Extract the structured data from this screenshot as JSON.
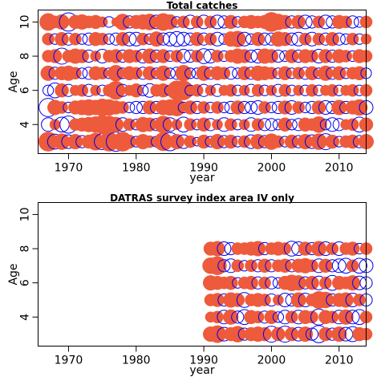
{
  "colors": {
    "positive": "#EE5A3C",
    "negative": "#0000EE"
  },
  "chart_data": [
    {
      "type": "scatter",
      "subtype": "bubble",
      "title": "Total catches",
      "xlabel": "year",
      "ylabel": "Age",
      "xlim": [
        1965.5,
        2014
      ],
      "ylim": [
        2.3,
        10.7
      ],
      "xticks": [
        1970,
        1980,
        1990,
        2000,
        2010
      ],
      "yticks": [
        4,
        6,
        8,
        10
      ],
      "grid": false,
      "ages": [
        3,
        4,
        5,
        6,
        7,
        8,
        9,
        10
      ],
      "years": [
        1967,
        1968,
        1969,
        1970,
        1971,
        1972,
        1973,
        1974,
        1975,
        1976,
        1977,
        1978,
        1979,
        1980,
        1981,
        1982,
        1983,
        1984,
        1985,
        1986,
        1987,
        1988,
        1989,
        1990,
        1991,
        1992,
        1993,
        1994,
        1995,
        1996,
        1997,
        1998,
        1999,
        2000,
        2001,
        2002,
        2003,
        2004,
        2005,
        2006,
        2007,
        2008,
        2009,
        2010,
        2011,
        2012,
        2013,
        2014
      ],
      "residuals": {
        "3": [
          1.0,
          -0.6,
          0.7,
          -0.5,
          0.6,
          -0.4,
          0.5,
          0.8,
          -0.7,
          1.0,
          -1.0,
          1.0,
          0.5,
          -0.3,
          0.6,
          0.4,
          -0.3,
          0.9,
          -0.9,
          0.6,
          -0.5,
          0.4,
          -0.2,
          0.5,
          -0.3,
          0.6,
          -0.4,
          0.5,
          -0.3,
          0.4,
          -0.5,
          0.6,
          -0.4,
          0.7,
          0.4,
          -0.3,
          0.5,
          -0.4,
          0.6,
          -0.5,
          0.7,
          -0.7,
          0.5,
          -0.3,
          0.4,
          0.5,
          -0.4,
          0.6
        ],
        "4": [
          -0.5,
          0.3,
          -0.6,
          -0.8,
          0.4,
          0.5,
          0.6,
          0.7,
          0.9,
          0.8,
          0.6,
          -0.5,
          0.4,
          -0.3,
          0.6,
          0.5,
          -0.4,
          0.8,
          -0.5,
          0.3,
          -0.6,
          0.4,
          -0.3,
          0.5,
          -0.4,
          0.3,
          -0.5,
          0.4,
          -0.3,
          0.3,
          -0.5,
          0.4,
          -0.4,
          -0.4,
          -0.3,
          0.5,
          -0.3,
          -0.4,
          0.5,
          0.4,
          0.7,
          -0.3,
          -0.5,
          -0.4,
          0.3,
          0.4,
          -0.6,
          0.5
        ],
        "5": [
          -0.9,
          0.6,
          0.4,
          -0.3,
          0.5,
          0.6,
          0.7,
          0.6,
          0.8,
          0.7,
          0.5,
          0.4,
          -0.3,
          -0.4,
          -0.4,
          0.5,
          -0.4,
          0.6,
          0.7,
          0.8,
          -0.3,
          0.5,
          -0.4,
          0.4,
          -0.3,
          0.4,
          -0.3,
          -0.4,
          0.5,
          -0.4,
          -0.4,
          -0.5,
          0.4,
          -0.3,
          -0.4,
          0.5,
          -0.5,
          0.4,
          -0.3,
          -0.4,
          0.5,
          -0.5,
          -0.4,
          0.6,
          -0.4,
          0.5,
          0.7,
          -0.5
        ],
        "6": [
          -0.3,
          -0.6,
          0.5,
          -0.4,
          0.3,
          0.4,
          -0.4,
          0.3,
          -0.3,
          0.4,
          0.9,
          -0.4,
          0.3,
          0.5,
          -0.3,
          -0.5,
          0.4,
          0.5,
          -0.3,
          1.0,
          1.0,
          -0.3,
          0.4,
          -0.4,
          0.3,
          -0.4,
          0.3,
          0.4,
          -0.3,
          0.3,
          -0.4,
          0.4,
          -0.3,
          0.3,
          -0.4,
          0.4,
          -0.3,
          0.3,
          -0.3,
          0.4,
          -0.3,
          0.3,
          0.4,
          -0.3,
          0.3,
          0.4,
          -0.3,
          0.4
        ],
        "7": [
          0.6,
          -0.4,
          0.5,
          0.6,
          0.4,
          -0.3,
          -0.4,
          0.5,
          0.4,
          -0.3,
          0.7,
          -0.3,
          0.5,
          0.4,
          -0.4,
          0.5,
          -0.3,
          0.6,
          -0.3,
          -0.4,
          0.7,
          -0.3,
          -0.3,
          0.6,
          -0.4,
          0.5,
          0.4,
          -0.4,
          -0.3,
          0.5,
          -0.4,
          0.6,
          0.5,
          0.4,
          -0.3,
          0.5,
          -0.3,
          0.4,
          -0.4,
          0.5,
          -0.3,
          0.6,
          -0.4,
          0.5,
          -0.3,
          0.4,
          0.5,
          -0.3
        ],
        "8": [
          0.4,
          0.5,
          -0.7,
          0.4,
          0.6,
          0.5,
          -0.4,
          0.3,
          -0.5,
          0.4,
          0.5,
          -0.4,
          0.5,
          0.4,
          -0.5,
          0.6,
          -0.4,
          0.5,
          -0.3,
          0.4,
          -0.5,
          -0.4,
          0.4,
          -0.6,
          -0.5,
          0.4,
          -0.3,
          0.4,
          0.6,
          0.5,
          -0.4,
          -0.5,
          0.6,
          0.5,
          -0.4,
          -0.3,
          0.5,
          -0.4,
          0.5,
          0.4,
          -0.5,
          0.5,
          -0.4,
          0.5,
          0.4,
          -0.3,
          0.5,
          0.4
        ],
        "9": [
          0.4,
          -0.3,
          0.5,
          -0.4,
          0.4,
          -0.3,
          -0.4,
          0.5,
          0.4,
          -0.3,
          -0.4,
          0.5,
          -0.5,
          -0.5,
          0.4,
          -0.3,
          0.6,
          -0.4,
          -0.5,
          -0.6,
          -0.5,
          -0.4,
          0.5,
          -0.4,
          0.4,
          -0.5,
          -0.3,
          0.6,
          0.7,
          -0.5,
          -0.3,
          0.5,
          -0.4,
          -0.4,
          0.6,
          0.5,
          -0.4,
          -0.5,
          0.4,
          -0.5,
          0.4,
          -0.4,
          0.5,
          -0.4,
          -0.3,
          0.4,
          -0.3,
          0.3
        ],
        "10": [
          0.8,
          0.4,
          0.6,
          -0.9,
          0.5,
          0.6,
          0.4,
          0.5,
          0.3,
          -0.3,
          0.2,
          0.7,
          -0.4,
          0.5,
          0.6,
          0.7,
          -0.5,
          0.8,
          0.6,
          -0.3,
          0.4,
          -0.5,
          0.4,
          -0.5,
          0.4,
          -0.5,
          -0.4,
          0.5,
          -0.3,
          0.4,
          0.5,
          0.4,
          0.5,
          1.0,
          0.7,
          0.5,
          -0.4,
          0.5,
          -0.5,
          -0.4,
          0.4,
          -0.5,
          -0.4,
          0.5,
          0.4,
          -0.4,
          -0.3,
          0.4
        ]
      }
    },
    {
      "type": "scatter",
      "subtype": "bubble",
      "title": "DATRAS survey index area IV only",
      "xlabel": "year",
      "ylabel": "Age",
      "xlim": [
        1965.5,
        2014
      ],
      "ylim": [
        2.3,
        10.7
      ],
      "xticks": [
        1970,
        1980,
        1990,
        2000,
        2010
      ],
      "yticks": [
        4,
        6,
        8,
        10
      ],
      "grid": false,
      "ages": [
        3,
        4,
        5,
        6,
        7,
        8
      ],
      "years": [
        1991,
        1992,
        1993,
        1994,
        1995,
        1996,
        1997,
        1998,
        1999,
        2000,
        2001,
        2002,
        2003,
        2004,
        2005,
        2006,
        2007,
        2008,
        2009,
        2010,
        2011,
        2012,
        2013,
        2014
      ],
      "residuals": {
        "3": [
          0.6,
          0.8,
          -0.5,
          0.5,
          0.7,
          -0.4,
          0.5,
          0.6,
          0.5,
          -0.7,
          0.5,
          -0.7,
          0.5,
          -0.5,
          0.6,
          -0.4,
          -0.8,
          0.5,
          -0.4,
          0.6,
          -0.5,
          -0.6,
          0.5,
          0.4
        ],
        "4": [
          0.3,
          0.4,
          -0.5,
          0.6,
          -0.4,
          -0.6,
          0.5,
          0.4,
          -0.4,
          0.5,
          -0.3,
          -0.5,
          0.4,
          -0.5,
          0.5,
          0.4,
          -0.7,
          0.5,
          0.4,
          -0.5,
          0.6,
          -0.5,
          -0.6,
          0.4
        ],
        "5": [
          0.4,
          0.5,
          -0.4,
          0.6,
          0.5,
          -0.6,
          0.4,
          0.5,
          0.4,
          -0.4,
          0.3,
          -0.5,
          -0.4,
          0.6,
          -0.5,
          0.4,
          0.8,
          0.7,
          -0.4,
          0.5,
          0.6,
          -0.5,
          0.4,
          -0.4
        ],
        "6": [
          0.6,
          0.5,
          0.4,
          0.5,
          -0.3,
          0.4,
          0.5,
          -0.4,
          0.4,
          -0.4,
          -0.3,
          0.5,
          0.7,
          0.6,
          -0.4,
          0.5,
          -0.5,
          0.4,
          -0.6,
          0.5,
          0.4,
          0.6,
          -0.5,
          -0.4
        ],
        "7": [
          0.7,
          0.9,
          -0.4,
          -0.5,
          0.4,
          -0.3,
          0.4,
          -0.4,
          0.5,
          -0.4,
          0.4,
          0.5,
          -0.4,
          0.5,
          0.6,
          0.4,
          -0.5,
          0.5,
          -0.4,
          -0.5,
          -0.6,
          0.4,
          -0.6,
          -0.5
        ],
        "8": [
          0.5,
          0.6,
          -0.5,
          -0.4,
          0.4,
          0.4,
          0.5,
          0.6,
          -0.4,
          0.4,
          0.5,
          0.4,
          -0.6,
          -0.5,
          0.5,
          -0.4,
          0.6,
          -0.5,
          0.4,
          -0.5,
          0.4,
          0.5,
          -0.3,
          0.4
        ]
      }
    }
  ]
}
